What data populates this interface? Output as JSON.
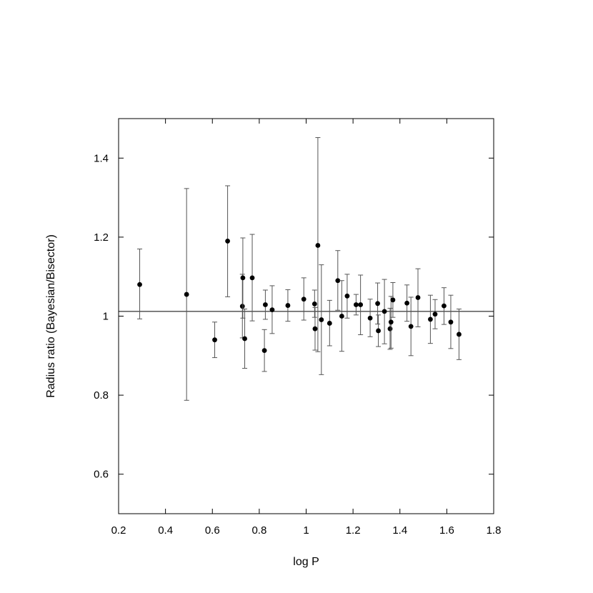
{
  "chart_data": {
    "type": "scatter",
    "xlabel": "log P",
    "ylabel": "Radius ratio (Bayesian/Bisector)",
    "xlim": [
      0.2,
      1.8
    ],
    "ylim": [
      0.5,
      1.5
    ],
    "x_ticks": [
      0.2,
      0.4,
      0.6,
      0.8,
      1.0,
      1.2,
      1.4,
      1.6,
      1.8
    ],
    "x_tick_labels": [
      "0.2",
      "0.4",
      "0.6",
      "0.8",
      "1",
      "1.2",
      "1.4",
      "1.6",
      "1.8"
    ],
    "y_ticks": [
      0.6,
      0.8,
      1.0,
      1.2,
      1.4
    ],
    "y_tick_labels": [
      "0.6",
      "0.8",
      "1",
      "1.2",
      "1.4"
    ],
    "grid": false,
    "reference_line_y": 1.012,
    "points": [
      {
        "x": 0.29,
        "y": 1.08,
        "lo": 0.993,
        "hi": 1.17
      },
      {
        "x": 0.49,
        "y": 1.055,
        "lo": 0.787,
        "hi": 1.323
      },
      {
        "x": 0.61,
        "y": 0.94,
        "lo": 0.895,
        "hi": 0.985
      },
      {
        "x": 0.665,
        "y": 1.19,
        "lo": 1.049,
        "hi": 1.33
      },
      {
        "x": 0.728,
        "y": 1.025,
        "lo": 0.945,
        "hi": 1.106
      },
      {
        "x": 0.73,
        "y": 1.097,
        "lo": 0.995,
        "hi": 1.198
      },
      {
        "x": 0.738,
        "y": 0.943,
        "lo": 0.868,
        "hi": 1.018
      },
      {
        "x": 0.77,
        "y": 1.097,
        "lo": 0.988,
        "hi": 1.207
      },
      {
        "x": 0.822,
        "y": 0.913,
        "lo": 0.86,
        "hi": 0.966
      },
      {
        "x": 0.826,
        "y": 1.029,
        "lo": 0.992,
        "hi": 1.066
      },
      {
        "x": 0.855,
        "y": 1.016,
        "lo": 0.956,
        "hi": 1.077
      },
      {
        "x": 0.922,
        "y": 1.027,
        "lo": 0.987,
        "hi": 1.067
      },
      {
        "x": 0.99,
        "y": 1.043,
        "lo": 0.99,
        "hi": 1.097
      },
      {
        "x": 1.036,
        "y": 1.031,
        "lo": 0.997,
        "hi": 1.066
      },
      {
        "x": 1.038,
        "y": 0.968,
        "lo": 0.914,
        "hi": 1.022
      },
      {
        "x": 1.05,
        "y": 1.179,
        "lo": 0.91,
        "hi": 1.452
      },
      {
        "x": 1.065,
        "y": 0.991,
        "lo": 0.852,
        "hi": 1.13
      },
      {
        "x": 1.1,
        "y": 0.982,
        "lo": 0.925,
        "hi": 1.04
      },
      {
        "x": 1.135,
        "y": 1.09,
        "lo": 1.015,
        "hi": 1.166
      },
      {
        "x": 1.152,
        "y": 1.0,
        "lo": 0.911,
        "hi": 1.09
      },
      {
        "x": 1.175,
        "y": 1.051,
        "lo": 0.995,
        "hi": 1.106
      },
      {
        "x": 1.213,
        "y": 1.029,
        "lo": 1.003,
        "hi": 1.055
      },
      {
        "x": 1.232,
        "y": 1.029,
        "lo": 0.953,
        "hi": 1.104
      },
      {
        "x": 1.273,
        "y": 0.995,
        "lo": 0.948,
        "hi": 1.043
      },
      {
        "x": 1.305,
        "y": 1.032,
        "lo": 0.98,
        "hi": 1.084
      },
      {
        "x": 1.308,
        "y": 0.963,
        "lo": 0.923,
        "hi": 1.003
      },
      {
        "x": 1.334,
        "y": 1.012,
        "lo": 0.93,
        "hi": 1.093
      },
      {
        "x": 1.358,
        "y": 0.968,
        "lo": 0.916,
        "hi": 1.02
      },
      {
        "x": 1.362,
        "y": 0.985,
        "lo": 0.919,
        "hi": 1.05
      },
      {
        "x": 1.37,
        "y": 1.041,
        "lo": 0.997,
        "hi": 1.085
      },
      {
        "x": 1.43,
        "y": 1.033,
        "lo": 0.987,
        "hi": 1.079
      },
      {
        "x": 1.447,
        "y": 0.974,
        "lo": 0.9,
        "hi": 1.048
      },
      {
        "x": 1.477,
        "y": 1.047,
        "lo": 0.973,
        "hi": 1.12
      },
      {
        "x": 1.53,
        "y": 0.992,
        "lo": 0.931,
        "hi": 1.053
      },
      {
        "x": 1.55,
        "y": 1.005,
        "lo": 0.968,
        "hi": 1.042
      },
      {
        "x": 1.588,
        "y": 1.026,
        "lo": 0.979,
        "hi": 1.072
      },
      {
        "x": 1.617,
        "y": 0.985,
        "lo": 0.918,
        "hi": 1.053
      },
      {
        "x": 1.652,
        "y": 0.954,
        "lo": 0.89,
        "hi": 1.018
      }
    ]
  }
}
